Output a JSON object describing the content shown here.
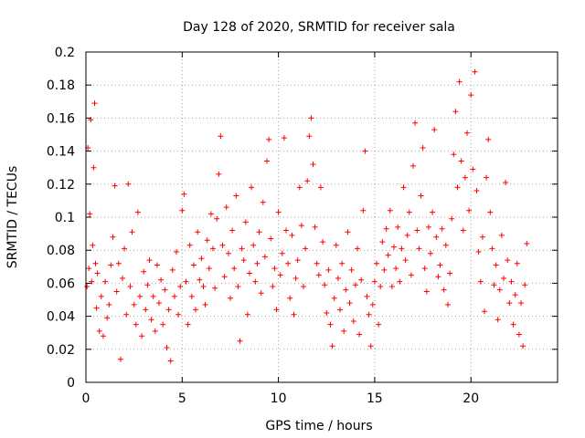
{
  "chart_data": {
    "type": "scatter",
    "title": "Day 128 of 2020, SRMTID for receiver sala",
    "xlabel": "GPS time / hours",
    "ylabel": "SRMTID / TECUs",
    "xlim": [
      0,
      24.5
    ],
    "ylim": [
      0,
      0.2
    ],
    "xticks": [
      0,
      5,
      10,
      15,
      20
    ],
    "xtick_labels": [
      "0",
      "5",
      "10",
      "15",
      "20"
    ],
    "yticks": [
      0,
      0.02,
      0.04,
      0.06,
      0.08,
      0.1,
      0.12,
      0.14,
      0.16,
      0.18,
      0.2
    ],
    "ytick_labels": [
      "0",
      "0.02",
      "0.04",
      "0.06",
      "0.08",
      "0.1",
      "0.12",
      "0.14",
      "0.16",
      "0.18",
      "0.2"
    ],
    "grid": true,
    "marker": "+",
    "color": "#ff0000",
    "series": [
      {
        "name": "SRMTID",
        "points": [
          [
            0.05,
            0.058
          ],
          [
            0.1,
            0.142
          ],
          [
            0.15,
            0.069
          ],
          [
            0.2,
            0.102
          ],
          [
            0.25,
            0.159
          ],
          [
            0.3,
            0.061
          ],
          [
            0.35,
            0.083
          ],
          [
            0.4,
            0.13
          ],
          [
            0.45,
            0.169
          ],
          [
            0.5,
            0.072
          ],
          [
            0.55,
            0.045
          ],
          [
            0.6,
            0.066
          ],
          [
            0.7,
            0.031
          ],
          [
            0.8,
            0.052
          ],
          [
            0.9,
            0.028
          ],
          [
            1.0,
            0.061
          ],
          [
            1.1,
            0.039
          ],
          [
            1.2,
            0.047
          ],
          [
            1.3,
            0.071
          ],
          [
            1.4,
            0.088
          ],
          [
            1.5,
            0.119
          ],
          [
            1.6,
            0.055
          ],
          [
            1.7,
            0.072
          ],
          [
            1.8,
            0.014
          ],
          [
            1.9,
            0.063
          ],
          [
            2.0,
            0.081
          ],
          [
            2.1,
            0.041
          ],
          [
            2.2,
            0.12
          ],
          [
            2.3,
            0.058
          ],
          [
            2.4,
            0.091
          ],
          [
            2.5,
            0.047
          ],
          [
            2.6,
            0.035
          ],
          [
            2.7,
            0.103
          ],
          [
            2.8,
            0.052
          ],
          [
            2.9,
            0.028
          ],
          [
            3.0,
            0.067
          ],
          [
            3.1,
            0.044
          ],
          [
            3.2,
            0.059
          ],
          [
            3.3,
            0.074
          ],
          [
            3.4,
            0.038
          ],
          [
            3.5,
            0.052
          ],
          [
            3.6,
            0.031
          ],
          [
            3.7,
            0.071
          ],
          [
            3.8,
            0.048
          ],
          [
            3.9,
            0.062
          ],
          [
            4.0,
            0.035
          ],
          [
            4.1,
            0.056
          ],
          [
            4.2,
            0.021
          ],
          [
            4.3,
            0.044
          ],
          [
            4.4,
            0.013
          ],
          [
            4.5,
            0.068
          ],
          [
            4.6,
            0.052
          ],
          [
            4.7,
            0.079
          ],
          [
            4.8,
            0.041
          ],
          [
            4.9,
            0.058
          ],
          [
            5.0,
            0.104
          ],
          [
            5.1,
            0.114
          ],
          [
            5.2,
            0.061
          ],
          [
            5.3,
            0.035
          ],
          [
            5.4,
            0.083
          ],
          [
            5.5,
            0.052
          ],
          [
            5.6,
            0.071
          ],
          [
            5.7,
            0.044
          ],
          [
            5.8,
            0.091
          ],
          [
            5.9,
            0.062
          ],
          [
            6.0,
            0.075
          ],
          [
            6.1,
            0.058
          ],
          [
            6.2,
            0.047
          ],
          [
            6.3,
            0.086
          ],
          [
            6.4,
            0.069
          ],
          [
            6.5,
            0.102
          ],
          [
            6.6,
            0.081
          ],
          [
            6.7,
            0.057
          ],
          [
            6.8,
            0.099
          ],
          [
            6.9,
            0.126
          ],
          [
            7.0,
            0.149
          ],
          [
            7.1,
            0.083
          ],
          [
            7.2,
            0.064
          ],
          [
            7.3,
            0.106
          ],
          [
            7.4,
            0.078
          ],
          [
            7.5,
            0.051
          ],
          [
            7.6,
            0.092
          ],
          [
            7.7,
            0.069
          ],
          [
            7.8,
            0.113
          ],
          [
            7.9,
            0.058
          ],
          [
            8.0,
            0.025
          ],
          [
            8.1,
            0.081
          ],
          [
            8.2,
            0.074
          ],
          [
            8.3,
            0.097
          ],
          [
            8.4,
            0.041
          ],
          [
            8.5,
            0.066
          ],
          [
            8.6,
            0.118
          ],
          [
            8.7,
            0.083
          ],
          [
            8.8,
            0.061
          ],
          [
            8.9,
            0.072
          ],
          [
            9.0,
            0.091
          ],
          [
            9.1,
            0.054
          ],
          [
            9.2,
            0.109
          ],
          [
            9.3,
            0.076
          ],
          [
            9.4,
            0.134
          ],
          [
            9.5,
            0.147
          ],
          [
            9.6,
            0.087
          ],
          [
            9.7,
            0.058
          ],
          [
            9.8,
            0.069
          ],
          [
            9.9,
            0.044
          ],
          [
            10.0,
            0.103
          ],
          [
            10.1,
            0.065
          ],
          [
            10.2,
            0.078
          ],
          [
            10.3,
            0.148
          ],
          [
            10.4,
            0.092
          ],
          [
            10.5,
            0.072
          ],
          [
            10.6,
            0.051
          ],
          [
            10.7,
            0.089
          ],
          [
            10.8,
            0.041
          ],
          [
            10.9,
            0.063
          ],
          [
            11.0,
            0.074
          ],
          [
            11.1,
            0.118
          ],
          [
            11.2,
            0.095
          ],
          [
            11.3,
            0.058
          ],
          [
            11.4,
            0.081
          ],
          [
            11.5,
            0.122
          ],
          [
            11.6,
            0.149
          ],
          [
            11.7,
            0.16
          ],
          [
            11.8,
            0.132
          ],
          [
            11.9,
            0.094
          ],
          [
            12.0,
            0.072
          ],
          [
            12.1,
            0.065
          ],
          [
            12.2,
            0.118
          ],
          [
            12.3,
            0.085
          ],
          [
            12.4,
            0.059
          ],
          [
            12.5,
            0.042
          ],
          [
            12.6,
            0.068
          ],
          [
            12.7,
            0.035
          ],
          [
            12.8,
            0.022
          ],
          [
            12.9,
            0.051
          ],
          [
            13.0,
            0.083
          ],
          [
            13.1,
            0.063
          ],
          [
            13.2,
            0.044
          ],
          [
            13.3,
            0.072
          ],
          [
            13.4,
            0.031
          ],
          [
            13.5,
            0.056
          ],
          [
            13.6,
            0.091
          ],
          [
            13.7,
            0.048
          ],
          [
            13.8,
            0.068
          ],
          [
            13.9,
            0.037
          ],
          [
            14.0,
            0.059
          ],
          [
            14.1,
            0.081
          ],
          [
            14.2,
            0.029
          ],
          [
            14.3,
            0.062
          ],
          [
            14.4,
            0.104
          ],
          [
            14.5,
            0.14
          ],
          [
            14.6,
            0.052
          ],
          [
            14.7,
            0.041
          ],
          [
            14.8,
            0.022
          ],
          [
            14.9,
            0.047
          ],
          [
            15.0,
            0.061
          ],
          [
            15.1,
            0.072
          ],
          [
            15.2,
            0.035
          ],
          [
            15.3,
            0.058
          ],
          [
            15.4,
            0.085
          ],
          [
            15.5,
            0.068
          ],
          [
            15.6,
            0.093
          ],
          [
            15.7,
            0.077
          ],
          [
            15.8,
            0.104
          ],
          [
            15.9,
            0.058
          ],
          [
            16.0,
            0.082
          ],
          [
            16.1,
            0.069
          ],
          [
            16.2,
            0.094
          ],
          [
            16.3,
            0.061
          ],
          [
            16.4,
            0.081
          ],
          [
            16.5,
            0.118
          ],
          [
            16.6,
            0.074
          ],
          [
            16.7,
            0.089
          ],
          [
            16.8,
            0.103
          ],
          [
            16.9,
            0.065
          ],
          [
            17.0,
            0.131
          ],
          [
            17.1,
            0.157
          ],
          [
            17.2,
            0.092
          ],
          [
            17.3,
            0.081
          ],
          [
            17.4,
            0.113
          ],
          [
            17.5,
            0.142
          ],
          [
            17.6,
            0.069
          ],
          [
            17.7,
            0.055
          ],
          [
            17.8,
            0.094
          ],
          [
            17.9,
            0.078
          ],
          [
            18.0,
            0.103
          ],
          [
            18.1,
            0.153
          ],
          [
            18.2,
            0.088
          ],
          [
            18.3,
            0.064
          ],
          [
            18.4,
            0.071
          ],
          [
            18.5,
            0.093
          ],
          [
            18.6,
            0.056
          ],
          [
            18.7,
            0.083
          ],
          [
            18.8,
            0.047
          ],
          [
            18.9,
            0.066
          ],
          [
            19.0,
            0.099
          ],
          [
            19.1,
            0.138
          ],
          [
            19.2,
            0.164
          ],
          [
            19.3,
            0.118
          ],
          [
            19.4,
            0.182
          ],
          [
            19.5,
            0.134
          ],
          [
            19.6,
            0.092
          ],
          [
            19.7,
            0.124
          ],
          [
            19.8,
            0.151
          ],
          [
            19.9,
            0.104
          ],
          [
            20.0,
            0.174
          ],
          [
            20.1,
            0.129
          ],
          [
            20.2,
            0.188
          ],
          [
            20.3,
            0.116
          ],
          [
            20.4,
            0.079
          ],
          [
            20.5,
            0.061
          ],
          [
            20.6,
            0.088
          ],
          [
            20.7,
            0.043
          ],
          [
            20.8,
            0.124
          ],
          [
            20.9,
            0.147
          ],
          [
            21.0,
            0.103
          ],
          [
            21.1,
            0.081
          ],
          [
            21.2,
            0.059
          ],
          [
            21.3,
            0.071
          ],
          [
            21.4,
            0.038
          ],
          [
            21.5,
            0.056
          ],
          [
            21.6,
            0.089
          ],
          [
            21.7,
            0.063
          ],
          [
            21.8,
            0.121
          ],
          [
            21.9,
            0.074
          ],
          [
            22.0,
            0.048
          ],
          [
            22.1,
            0.061
          ],
          [
            22.2,
            0.035
          ],
          [
            22.3,
            0.053
          ],
          [
            22.4,
            0.072
          ],
          [
            22.5,
            0.029
          ],
          [
            22.6,
            0.048
          ],
          [
            22.7,
            0.022
          ],
          [
            22.8,
            0.059
          ],
          [
            22.9,
            0.084
          ]
        ]
      }
    ]
  }
}
